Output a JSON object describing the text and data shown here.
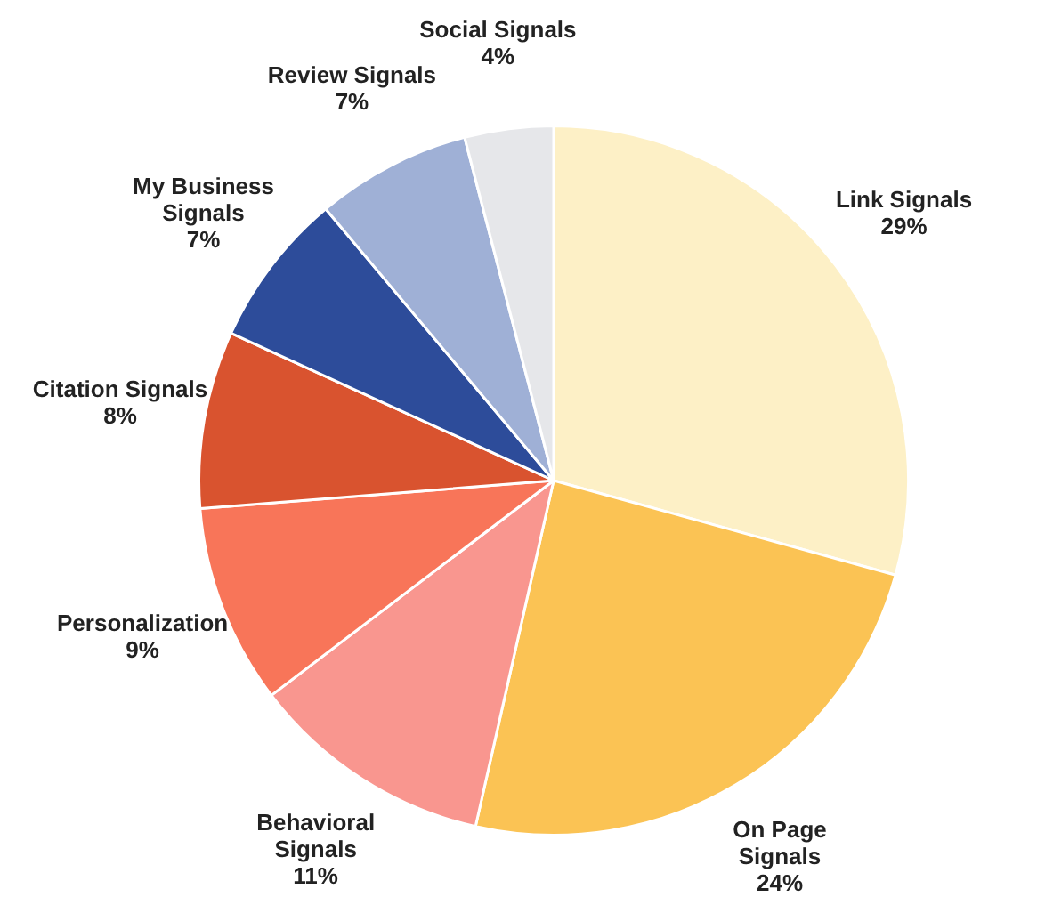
{
  "chart_data": {
    "type": "pie",
    "categories": [
      "Link Signals",
      "On Page Signals",
      "Behavioral Signals",
      "Personalization",
      "Citation Signals",
      "My Business Signals",
      "Review Signals",
      "Social Signals"
    ],
    "values": [
      29,
      24,
      11,
      9,
      8,
      7,
      7,
      4
    ],
    "value_labels": [
      "29%",
      "24%",
      "11%",
      "9%",
      "8%",
      "7%",
      "7%",
      "4%"
    ],
    "colors": [
      "#fdf0c6",
      "#fbc354",
      "#f9968f",
      "#f87559",
      "#d9532f",
      "#2d4c9a",
      "#9fb0d6",
      "#e6e7ea"
    ],
    "legend": false
  }
}
